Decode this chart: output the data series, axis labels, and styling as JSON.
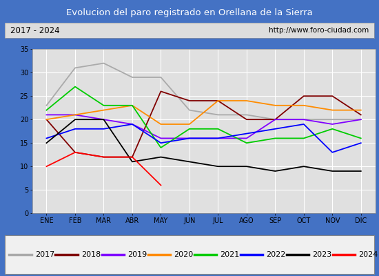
{
  "title": "Evolucion del paro registrado en Orellana de la Sierra",
  "subtitle_left": "2017 - 2024",
  "subtitle_right": "http://www.foro-ciudad.com",
  "months": [
    "ENE",
    "FEB",
    "MAR",
    "ABR",
    "MAY",
    "JUN",
    "JUL",
    "AGO",
    "SEP",
    "OCT",
    "NOV",
    "DIC"
  ],
  "ylim": [
    0,
    35
  ],
  "yticks": [
    0,
    5,
    10,
    15,
    20,
    25,
    30,
    35
  ],
  "series": {
    "2017": {
      "color": "#aaaaaa",
      "data": [
        23,
        31,
        32,
        29,
        29,
        22,
        21,
        21,
        20,
        20,
        20,
        20
      ]
    },
    "2018": {
      "color": "#800000",
      "data": [
        20,
        13,
        12,
        12,
        26,
        24,
        24,
        20,
        20,
        25,
        25,
        21
      ]
    },
    "2019": {
      "color": "#8000ff",
      "data": [
        21,
        21,
        20,
        19,
        16,
        16,
        16,
        16,
        20,
        20,
        19,
        20
      ]
    },
    "2020": {
      "color": "#ff8c00",
      "data": [
        20,
        21,
        22,
        23,
        19,
        19,
        24,
        24,
        23,
        23,
        22,
        22
      ]
    },
    "2021": {
      "color": "#00cc00",
      "data": [
        22,
        27,
        23,
        23,
        14,
        18,
        18,
        15,
        16,
        16,
        18,
        16
      ]
    },
    "2022": {
      "color": "#0000ff",
      "data": [
        16,
        18,
        18,
        19,
        15,
        16,
        16,
        17,
        18,
        19,
        13,
        15
      ]
    },
    "2023": {
      "color": "#000000",
      "data": [
        15,
        20,
        20,
        11,
        12,
        11,
        10,
        10,
        9,
        10,
        9,
        9
      ]
    },
    "2024": {
      "color": "#ff0000",
      "data": [
        10,
        13,
        12,
        12,
        6,
        null,
        null,
        null,
        null,
        null,
        null,
        null
      ]
    }
  },
  "title_bg_color": "#4472c4",
  "title_fg_color": "#ffffff",
  "subtitle_bg_color": "#dddddd",
  "plot_bg_color": "#e0e0e0",
  "grid_color": "#ffffff",
  "legend_bg_color": "#f0f0f0",
  "outer_bg_color": "#4472c4"
}
